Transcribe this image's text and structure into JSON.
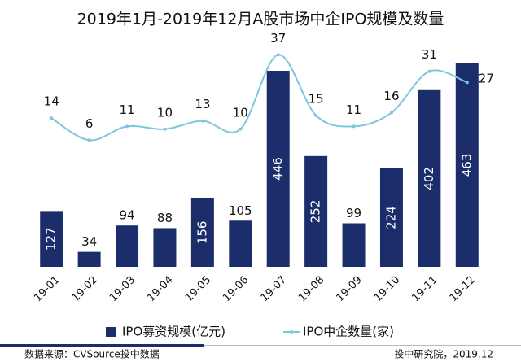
{
  "chart_data": {
    "type": "combo",
    "title": "2019年1月-2019年12月A股市场中企IPO规模及数量",
    "categories": [
      "19-01",
      "19-02",
      "19-03",
      "19-04",
      "19-05",
      "19-06",
      "19-07",
      "19-08",
      "19-09",
      "19-10",
      "19-11",
      "19-12"
    ],
    "series": [
      {
        "name": "IPO募资规模(亿元)",
        "type": "bar",
        "color": "#1b2d6b",
        "values": [
          127,
          34,
          94,
          88,
          156,
          105,
          446,
          252,
          99,
          224,
          402,
          463
        ]
      },
      {
        "name": "IPO中企数量(家)",
        "type": "line",
        "axis": "y2",
        "color": "#7cc6df",
        "values": [
          14,
          6,
          11,
          10,
          13,
          10,
          37,
          15,
          11,
          16,
          31,
          27
        ]
      }
    ],
    "ylim": [
      0,
      570
    ],
    "y2lim": [
      -40,
      51
    ],
    "source": "数据来源：CVSource投中数据",
    "credit": "投中研究院，2019.12"
  }
}
